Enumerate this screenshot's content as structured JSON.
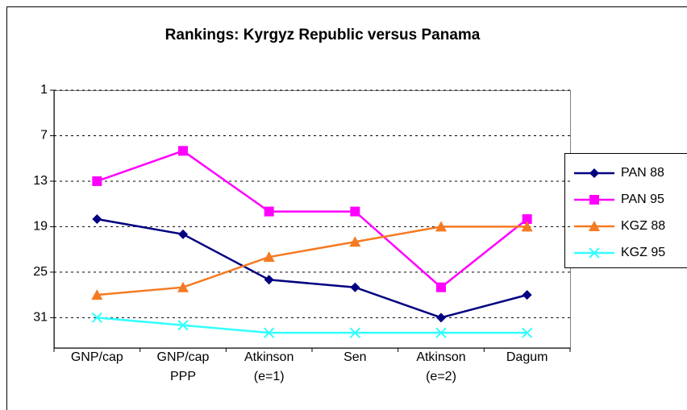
{
  "chart_data": {
    "type": "line",
    "title": "Rankings: Kyrgyz Republic versus Panama",
    "categories": [
      "GNP/cap",
      "GNP/cap\nPPP",
      "Atkinson\n(e=1)",
      "Sen",
      "Atkinson\n(e=2)",
      "Dagum"
    ],
    "series": [
      {
        "name": "PAN 88",
        "color": "#000080",
        "marker": "diamond",
        "values": [
          18,
          20,
          26,
          27,
          31,
          28
        ]
      },
      {
        "name": "PAN 95",
        "color": "#ff00ff",
        "marker": "square",
        "values": [
          13,
          9,
          17,
          17,
          27,
          18
        ]
      },
      {
        "name": "KGZ 88",
        "color": "#f57a22",
        "marker": "triangle",
        "values": [
          28,
          27,
          23,
          21,
          19,
          19
        ]
      },
      {
        "name": "KGZ 95",
        "color": "#33ffff",
        "marker": "x",
        "values": [
          31,
          32,
          33,
          33,
          33,
          33
        ]
      }
    ],
    "ylim": [
      1,
      35
    ],
    "y_reversed": true,
    "yticks": [
      1,
      7,
      13,
      19,
      25,
      31
    ],
    "grid": true,
    "legend": "right"
  }
}
